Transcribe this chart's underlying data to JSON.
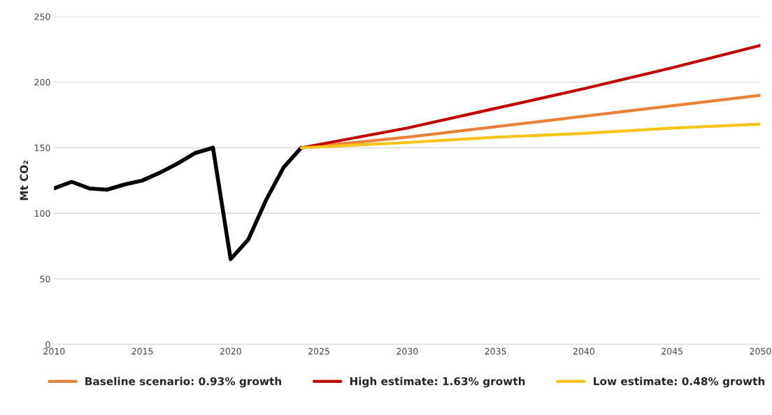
{
  "chart_data": {
    "type": "line",
    "ylabel": "Mt CO₂",
    "xlim": [
      2010,
      2050
    ],
    "xticks": [
      2010,
      2015,
      2020,
      2025,
      2030,
      2035,
      2040,
      2045,
      2050
    ],
    "ylim": [
      0,
      250
    ],
    "yticks": [
      0,
      50,
      100,
      150,
      200,
      250
    ],
    "grid": "y",
    "legend": "bottom",
    "marker": "none",
    "line_style": "solid",
    "series": [
      {
        "color": "#000000",
        "x": [
          2010,
          2011,
          2012,
          2013,
          2014,
          2015,
          2016,
          2017,
          2018,
          2019,
          2020,
          2021,
          2022,
          2023,
          2024
        ],
        "values": [
          119,
          124,
          119,
          118,
          122,
          125,
          131,
          138,
          146,
          150,
          65,
          80,
          110,
          135,
          150
        ]
      },
      {
        "name": "Baseline scenario: 0.93% growth",
        "color": "#e8823a",
        "x": [
          2024,
          2030,
          2035,
          2040,
          2045,
          2050
        ],
        "values": [
          150,
          158,
          166,
          174,
          182,
          190
        ]
      },
      {
        "name": "High estimate: 1.63% growth",
        "color": "#c00000",
        "x": [
          2024,
          2030,
          2035,
          2040,
          2045,
          2050
        ],
        "values": [
          150,
          165,
          180,
          195,
          211,
          228
        ]
      },
      {
        "name": "Low estimate: 0.48% growth",
        "color": "#f5c518",
        "x": [
          2024,
          2030,
          2035,
          2040,
          2045,
          2050
        ],
        "values": [
          150,
          154,
          158,
          161,
          165,
          168
        ]
      }
    ]
  }
}
